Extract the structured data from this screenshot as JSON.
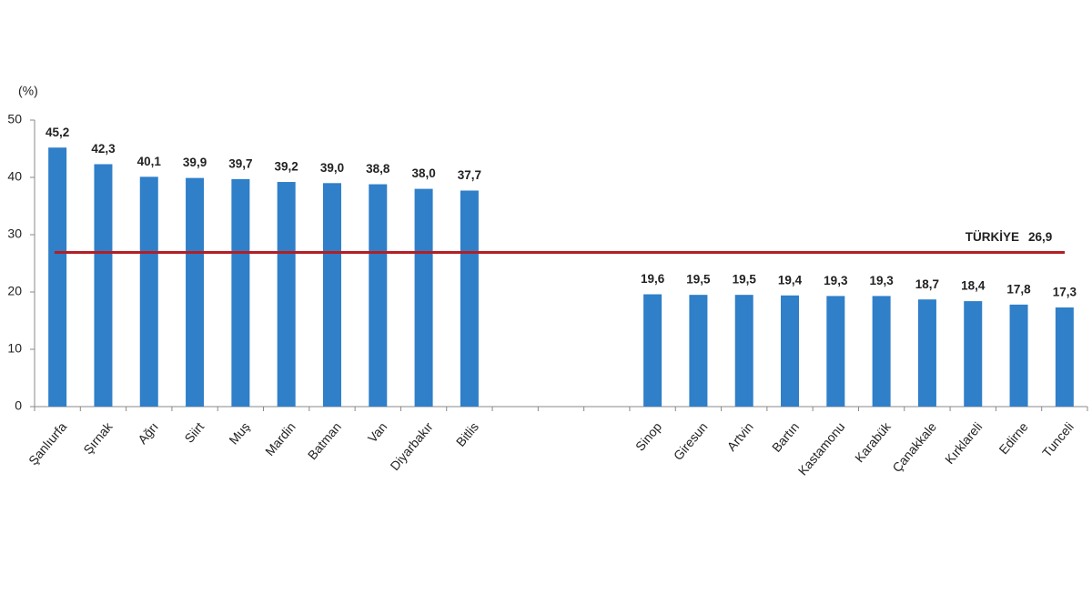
{
  "chart_data": {
    "type": "bar",
    "y_unit_label": "(%)",
    "categories": [
      "Şanlıurfa",
      "Şırnak",
      "Ağrı",
      "Siirt",
      "Muş",
      "Mardin",
      "Batman",
      "Van",
      "Diyarbakır",
      "Bitlis",
      null,
      null,
      null,
      "Sinop",
      "Giresun",
      "Artvin",
      "Bartın",
      "Kastamonu",
      "Karabük",
      "Çanakkale",
      "Kırklareli",
      "Edirne",
      "Tunceli"
    ],
    "values": [
      45.2,
      42.3,
      40.1,
      39.9,
      39.7,
      39.2,
      39.0,
      38.8,
      38.0,
      37.7,
      null,
      null,
      null,
      19.6,
      19.5,
      19.5,
      19.4,
      19.3,
      19.3,
      18.7,
      18.4,
      17.8,
      17.3
    ],
    "value_labels": [
      "45,2",
      "42,3",
      "40,1",
      "39,9",
      "39,7",
      "39,2",
      "39,0",
      "38,8",
      "38,0",
      "37,7",
      null,
      null,
      null,
      "19,6",
      "19,5",
      "19,5",
      "19,4",
      "19,3",
      "19,3",
      "18,7",
      "18,4",
      "17,8",
      "17,3"
    ],
    "color": "#2f7fc9",
    "ylim": [
      0,
      50
    ],
    "yticks": [
      0,
      10,
      20,
      30,
      40,
      50
    ],
    "reference_line": {
      "value": 26.9,
      "label": "TÜRKİYE",
      "value_label": "26,9",
      "color": "#b21f24"
    }
  }
}
